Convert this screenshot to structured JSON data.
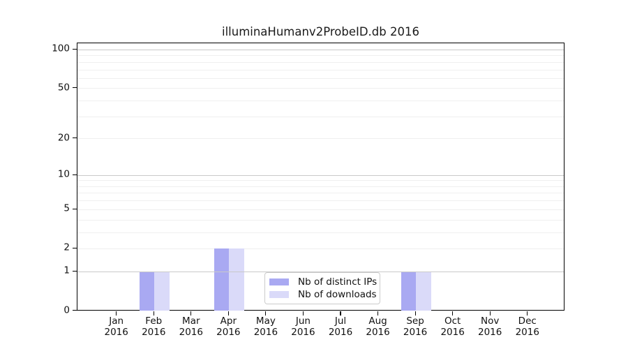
{
  "chart_data": {
    "type": "bar",
    "title": "illuminaHumanv2ProbeID.db 2016",
    "months": [
      "Jan",
      "Feb",
      "Mar",
      "Apr",
      "May",
      "Jun",
      "Jul",
      "Aug",
      "Sep",
      "Oct",
      "Nov",
      "Dec"
    ],
    "year_label": "2016",
    "series": [
      {
        "name": "Nb of distinct IPs",
        "color": "#a9a9f2",
        "values": [
          0,
          1,
          0,
          2,
          0,
          0,
          0,
          0,
          1,
          0,
          0,
          0
        ]
      },
      {
        "name": "Nb of downloads",
        "color": "#dadaf9",
        "values": [
          0,
          1,
          0,
          2,
          0,
          0,
          0,
          0,
          1,
          0,
          0,
          0
        ]
      }
    ],
    "y_axis": {
      "scale": "log1p",
      "tick_values": [
        0,
        1,
        2,
        5,
        10,
        20,
        50,
        100
      ],
      "tick_labels": [
        "0",
        "1",
        "2",
        "5",
        "10",
        "20",
        "50",
        "100"
      ],
      "major_grid_values": [
        1,
        10,
        100
      ],
      "minor_grid_values": [
        2,
        3,
        4,
        5,
        6,
        7,
        8,
        9,
        20,
        30,
        40,
        50,
        60,
        70,
        80,
        90
      ],
      "range_max": 113
    },
    "x_axis": {
      "label_lines": 2
    },
    "legend": {
      "position": "lower-center-inside"
    },
    "colors": {
      "axis": "#000000",
      "major_grid": "#c9c9c9",
      "minor_grid": "#efefef",
      "background": "#ffffff",
      "legend_border": "#cbcbcb"
    }
  }
}
